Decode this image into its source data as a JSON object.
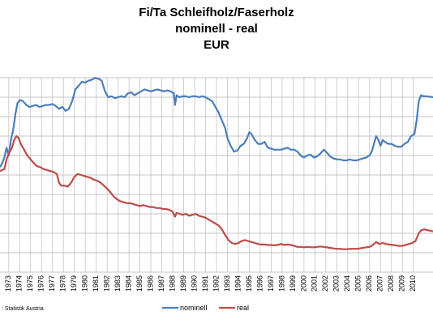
{
  "chart_data": {
    "type": "line",
    "title_lines": [
      "Fi/Ta Schleifholz/Faserholz",
      "nominell - real",
      "EUR"
    ],
    "source": ": Statistik Austria",
    "x_tick_labels": [
      "1973",
      "1974",
      "1975",
      "1976",
      "1977",
      "1978",
      "1979",
      "1980",
      "1981",
      "1982",
      "1983",
      "1984",
      "1985",
      "1986",
      "1987",
      "1988",
      "1989",
      "1990",
      "1991",
      "1992",
      "1993",
      "1994",
      "1995",
      "1996",
      "1997",
      "1998",
      "1999",
      "2000",
      "2001",
      "2002",
      "2003",
      "2004",
      "2005",
      "2006",
      "2007",
      "2008",
      "2009",
      "2010"
    ],
    "xlim": [
      1972.2,
      2011.8
    ],
    "ylim": [
      0,
      10
    ],
    "grid": true,
    "legend_position": "bottom",
    "series": [
      {
        "name": "nominell",
        "color": "#4a7ebb",
        "points": [
          [
            1972.2,
            5.4
          ],
          [
            1972.4,
            5.6
          ],
          [
            1972.6,
            5.9
          ],
          [
            1972.8,
            6.4
          ],
          [
            1973.0,
            6.0
          ],
          [
            1973.2,
            6.8
          ],
          [
            1973.4,
            7.3
          ],
          [
            1973.6,
            8.1
          ],
          [
            1973.8,
            8.7
          ],
          [
            1974.0,
            8.85
          ],
          [
            1974.3,
            8.8
          ],
          [
            1974.6,
            8.6
          ],
          [
            1974.9,
            8.5
          ],
          [
            1975.2,
            8.55
          ],
          [
            1975.5,
            8.6
          ],
          [
            1975.8,
            8.5
          ],
          [
            1976.1,
            8.55
          ],
          [
            1976.4,
            8.6
          ],
          [
            1976.7,
            8.6
          ],
          [
            1977.0,
            8.65
          ],
          [
            1977.3,
            8.55
          ],
          [
            1977.6,
            8.4
          ],
          [
            1977.9,
            8.5
          ],
          [
            1978.2,
            8.3
          ],
          [
            1978.5,
            8.4
          ],
          [
            1978.8,
            8.8
          ],
          [
            1979.1,
            9.4
          ],
          [
            1979.4,
            9.6
          ],
          [
            1979.7,
            9.8
          ],
          [
            1980.0,
            9.75
          ],
          [
            1980.3,
            9.85
          ],
          [
            1980.6,
            9.9
          ],
          [
            1980.9,
            10.0
          ],
          [
            1981.2,
            9.95
          ],
          [
            1981.5,
            9.85
          ],
          [
            1981.8,
            9.3
          ],
          [
            1982.1,
            9.0
          ],
          [
            1982.4,
            9.05
          ],
          [
            1982.7,
            8.95
          ],
          [
            1983.0,
            9.0
          ],
          [
            1983.3,
            9.05
          ],
          [
            1983.6,
            9.0
          ],
          [
            1983.9,
            9.2
          ],
          [
            1984.2,
            9.25
          ],
          [
            1984.5,
            9.1
          ],
          [
            1984.8,
            9.2
          ],
          [
            1985.1,
            9.3
          ],
          [
            1985.4,
            9.4
          ],
          [
            1985.7,
            9.35
          ],
          [
            1986.0,
            9.3
          ],
          [
            1986.3,
            9.35
          ],
          [
            1986.6,
            9.4
          ],
          [
            1986.9,
            9.35
          ],
          [
            1987.2,
            9.3
          ],
          [
            1987.5,
            9.35
          ],
          [
            1987.8,
            9.3
          ],
          [
            1988.1,
            9.2
          ],
          [
            1988.2,
            8.6
          ],
          [
            1988.35,
            9.1
          ],
          [
            1988.6,
            9.0
          ],
          [
            1988.9,
            9.05
          ],
          [
            1989.2,
            9.05
          ],
          [
            1989.5,
            9.0
          ],
          [
            1989.8,
            9.05
          ],
          [
            1990.1,
            9.05
          ],
          [
            1990.4,
            9.0
          ],
          [
            1990.7,
            9.05
          ],
          [
            1991.0,
            9.0
          ],
          [
            1991.3,
            8.9
          ],
          [
            1991.6,
            8.8
          ],
          [
            1991.9,
            8.5
          ],
          [
            1992.2,
            8.2
          ],
          [
            1992.5,
            7.8
          ],
          [
            1992.8,
            7.4
          ],
          [
            1993.0,
            6.9
          ],
          [
            1993.3,
            6.5
          ],
          [
            1993.6,
            6.2
          ],
          [
            1993.9,
            6.25
          ],
          [
            1994.2,
            6.5
          ],
          [
            1994.5,
            6.6
          ],
          [
            1994.8,
            6.9
          ],
          [
            1995.0,
            7.2
          ],
          [
            1995.2,
            7.1
          ],
          [
            1995.5,
            6.8
          ],
          [
            1995.8,
            6.6
          ],
          [
            1996.1,
            6.6
          ],
          [
            1996.4,
            6.7
          ],
          [
            1996.7,
            6.4
          ],
          [
            1997.0,
            6.35
          ],
          [
            1997.3,
            6.3
          ],
          [
            1997.6,
            6.3
          ],
          [
            1997.9,
            6.3
          ],
          [
            1998.2,
            6.35
          ],
          [
            1998.5,
            6.4
          ],
          [
            1998.8,
            6.3
          ],
          [
            1999.1,
            6.3
          ],
          [
            1999.4,
            6.2
          ],
          [
            1999.7,
            6.0
          ],
          [
            2000.0,
            5.9
          ],
          [
            2000.3,
            6.0
          ],
          [
            2000.6,
            6.05
          ],
          [
            2000.9,
            5.9
          ],
          [
            2001.2,
            5.95
          ],
          [
            2001.5,
            6.1
          ],
          [
            2001.8,
            6.3
          ],
          [
            2002.1,
            6.15
          ],
          [
            2002.4,
            5.95
          ],
          [
            2002.7,
            5.85
          ],
          [
            2003.0,
            5.8
          ],
          [
            2003.3,
            5.8
          ],
          [
            2003.6,
            5.75
          ],
          [
            2003.9,
            5.75
          ],
          [
            2004.2,
            5.8
          ],
          [
            2004.5,
            5.75
          ],
          [
            2004.8,
            5.75
          ],
          [
            2005.1,
            5.8
          ],
          [
            2005.4,
            5.85
          ],
          [
            2005.7,
            5.9
          ],
          [
            2006.0,
            6.0
          ],
          [
            2006.2,
            6.2
          ],
          [
            2006.4,
            6.6
          ],
          [
            2006.6,
            7.0
          ],
          [
            2006.8,
            6.8
          ],
          [
            2007.0,
            6.5
          ],
          [
            2007.2,
            6.8
          ],
          [
            2007.4,
            6.7
          ],
          [
            2007.7,
            6.6
          ],
          [
            2008.0,
            6.6
          ],
          [
            2008.3,
            6.5
          ],
          [
            2008.6,
            6.45
          ],
          [
            2008.9,
            6.45
          ],
          [
            2009.2,
            6.6
          ],
          [
            2009.5,
            6.7
          ],
          [
            2009.8,
            7.0
          ],
          [
            2010.1,
            7.1
          ],
          [
            2010.3,
            7.8
          ],
          [
            2010.5,
            8.8
          ],
          [
            2010.7,
            9.1
          ],
          [
            2010.9,
            9.05
          ],
          [
            2011.2,
            9.05
          ],
          [
            2011.8,
            9.0
          ]
        ]
      },
      {
        "name": "real",
        "color": "#be4b48",
        "points": [
          [
            1972.2,
            5.2
          ],
          [
            1972.4,
            5.25
          ],
          [
            1972.6,
            5.3
          ],
          [
            1972.8,
            5.8
          ],
          [
            1973.0,
            6.1
          ],
          [
            1973.3,
            6.4
          ],
          [
            1973.5,
            6.8
          ],
          [
            1973.7,
            7.0
          ],
          [
            1973.9,
            6.9
          ],
          [
            1974.1,
            6.6
          ],
          [
            1974.4,
            6.3
          ],
          [
            1974.7,
            6.0
          ],
          [
            1975.0,
            5.8
          ],
          [
            1975.3,
            5.6
          ],
          [
            1975.6,
            5.45
          ],
          [
            1975.9,
            5.4
          ],
          [
            1976.2,
            5.3
          ],
          [
            1976.5,
            5.25
          ],
          [
            1976.8,
            5.2
          ],
          [
            1977.1,
            5.15
          ],
          [
            1977.4,
            5.05
          ],
          [
            1977.6,
            4.6
          ],
          [
            1977.8,
            4.45
          ],
          [
            1978.1,
            4.45
          ],
          [
            1978.4,
            4.4
          ],
          [
            1978.7,
            4.6
          ],
          [
            1979.0,
            4.9
          ],
          [
            1979.3,
            5.05
          ],
          [
            1979.6,
            5.0
          ],
          [
            1979.9,
            4.95
          ],
          [
            1980.2,
            4.9
          ],
          [
            1980.5,
            4.85
          ],
          [
            1980.8,
            4.75
          ],
          [
            1981.1,
            4.7
          ],
          [
            1981.4,
            4.6
          ],
          [
            1981.7,
            4.45
          ],
          [
            1982.0,
            4.3
          ],
          [
            1982.3,
            4.1
          ],
          [
            1982.6,
            3.9
          ],
          [
            1982.9,
            3.75
          ],
          [
            1983.2,
            3.65
          ],
          [
            1983.5,
            3.6
          ],
          [
            1983.8,
            3.55
          ],
          [
            1984.1,
            3.55
          ],
          [
            1984.4,
            3.5
          ],
          [
            1984.7,
            3.45
          ],
          [
            1985.0,
            3.4
          ],
          [
            1985.3,
            3.45
          ],
          [
            1985.6,
            3.4
          ],
          [
            1985.9,
            3.35
          ],
          [
            1986.2,
            3.35
          ],
          [
            1986.5,
            3.3
          ],
          [
            1986.8,
            3.3
          ],
          [
            1987.1,
            3.25
          ],
          [
            1987.4,
            3.25
          ],
          [
            1987.7,
            3.2
          ],
          [
            1988.0,
            3.1
          ],
          [
            1988.2,
            2.85
          ],
          [
            1988.35,
            3.05
          ],
          [
            1988.6,
            3.0
          ],
          [
            1988.9,
            2.95
          ],
          [
            1989.2,
            3.0
          ],
          [
            1989.5,
            2.9
          ],
          [
            1989.8,
            2.95
          ],
          [
            1990.1,
            3.0
          ],
          [
            1990.4,
            2.9
          ],
          [
            1990.7,
            2.85
          ],
          [
            1991.0,
            2.8
          ],
          [
            1991.3,
            2.7
          ],
          [
            1991.6,
            2.6
          ],
          [
            1991.9,
            2.5
          ],
          [
            1992.2,
            2.4
          ],
          [
            1992.5,
            2.2
          ],
          [
            1992.8,
            1.9
          ],
          [
            1993.1,
            1.65
          ],
          [
            1993.4,
            1.5
          ],
          [
            1993.7,
            1.45
          ],
          [
            1994.0,
            1.5
          ],
          [
            1994.3,
            1.6
          ],
          [
            1994.6,
            1.65
          ],
          [
            1994.9,
            1.6
          ],
          [
            1995.2,
            1.55
          ],
          [
            1995.5,
            1.5
          ],
          [
            1995.8,
            1.45
          ],
          [
            1996.1,
            1.42
          ],
          [
            1996.4,
            1.42
          ],
          [
            1996.7,
            1.4
          ],
          [
            1997.0,
            1.4
          ],
          [
            1997.3,
            1.38
          ],
          [
            1997.6,
            1.4
          ],
          [
            1997.9,
            1.45
          ],
          [
            1998.2,
            1.4
          ],
          [
            1998.5,
            1.42
          ],
          [
            1998.8,
            1.4
          ],
          [
            1999.1,
            1.35
          ],
          [
            1999.4,
            1.3
          ],
          [
            1999.7,
            1.3
          ],
          [
            2000.0,
            1.28
          ],
          [
            2000.3,
            1.3
          ],
          [
            2000.6,
            1.28
          ],
          [
            2000.9,
            1.28
          ],
          [
            2001.2,
            1.3
          ],
          [
            2001.5,
            1.32
          ],
          [
            2001.8,
            1.3
          ],
          [
            2002.1,
            1.28
          ],
          [
            2002.4,
            1.25
          ],
          [
            2002.7,
            1.22
          ],
          [
            2003.0,
            1.2
          ],
          [
            2003.3,
            1.2
          ],
          [
            2003.6,
            1.18
          ],
          [
            2003.9,
            1.18
          ],
          [
            2004.2,
            1.2
          ],
          [
            2004.5,
            1.2
          ],
          [
            2004.8,
            1.2
          ],
          [
            2005.1,
            1.22
          ],
          [
            2005.4,
            1.25
          ],
          [
            2005.7,
            1.28
          ],
          [
            2006.0,
            1.3
          ],
          [
            2006.3,
            1.4
          ],
          [
            2006.6,
            1.55
          ],
          [
            2006.9,
            1.45
          ],
          [
            2007.2,
            1.5
          ],
          [
            2007.5,
            1.45
          ],
          [
            2007.8,
            1.42
          ],
          [
            2008.1,
            1.4
          ],
          [
            2008.4,
            1.38
          ],
          [
            2008.7,
            1.35
          ],
          [
            2009.0,
            1.35
          ],
          [
            2009.3,
            1.4
          ],
          [
            2009.6,
            1.45
          ],
          [
            2009.9,
            1.5
          ],
          [
            2010.2,
            1.6
          ],
          [
            2010.5,
            2.0
          ],
          [
            2010.7,
            2.15
          ],
          [
            2011.0,
            2.2
          ],
          [
            2011.4,
            2.15
          ],
          [
            2011.8,
            2.1
          ]
        ]
      }
    ]
  }
}
